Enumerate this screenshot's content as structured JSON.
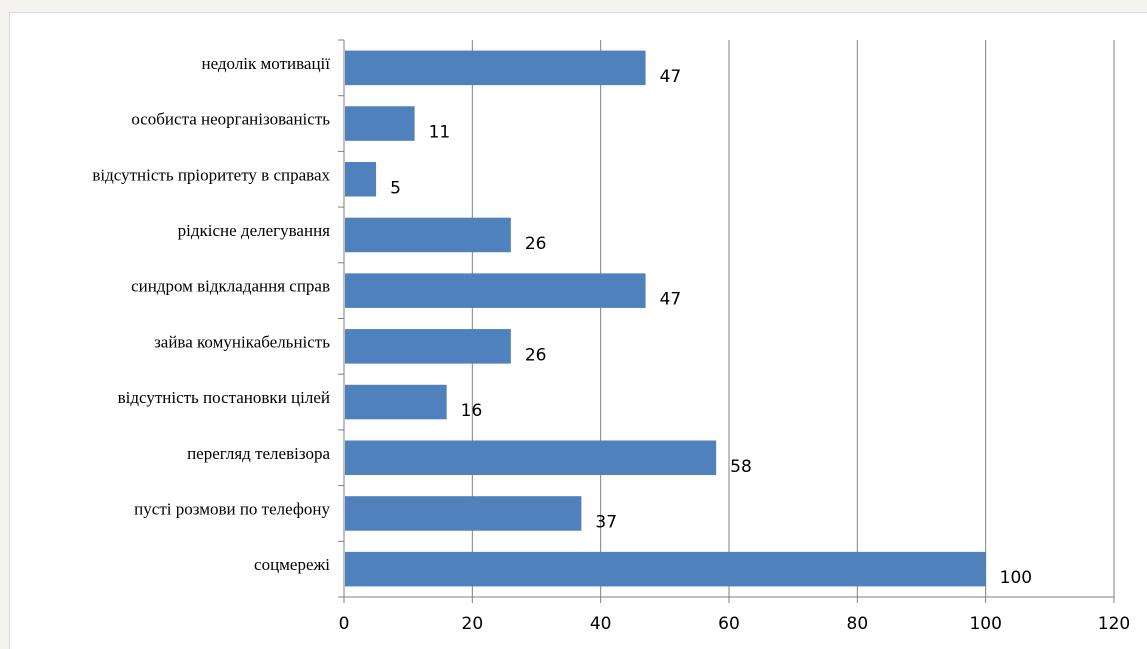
{
  "chart_data": {
    "type": "bar",
    "orientation": "horizontal",
    "categories": [
      "недолік мотивації",
      "особиста неорганізованість",
      "відсутність пріоритету  в справах",
      "рідкісне делегування",
      "синдром відкладання справ",
      "зайва комунікабельність",
      "відсутність постановки цілей",
      "перегляд телевізора",
      "пусті розмови по телефону",
      "соцмережі"
    ],
    "values": [
      47,
      11,
      5,
      26,
      47,
      26,
      16,
      58,
      37,
      100
    ],
    "xlim": [
      0,
      120
    ],
    "xticks": [
      "0",
      "20",
      "40",
      "60",
      "80",
      "100",
      "120"
    ],
    "grid": "vertical",
    "bar_color": "#4f81bd",
    "grid_color": "#808080",
    "title": "",
    "xlabel": "",
    "ylabel": ""
  }
}
